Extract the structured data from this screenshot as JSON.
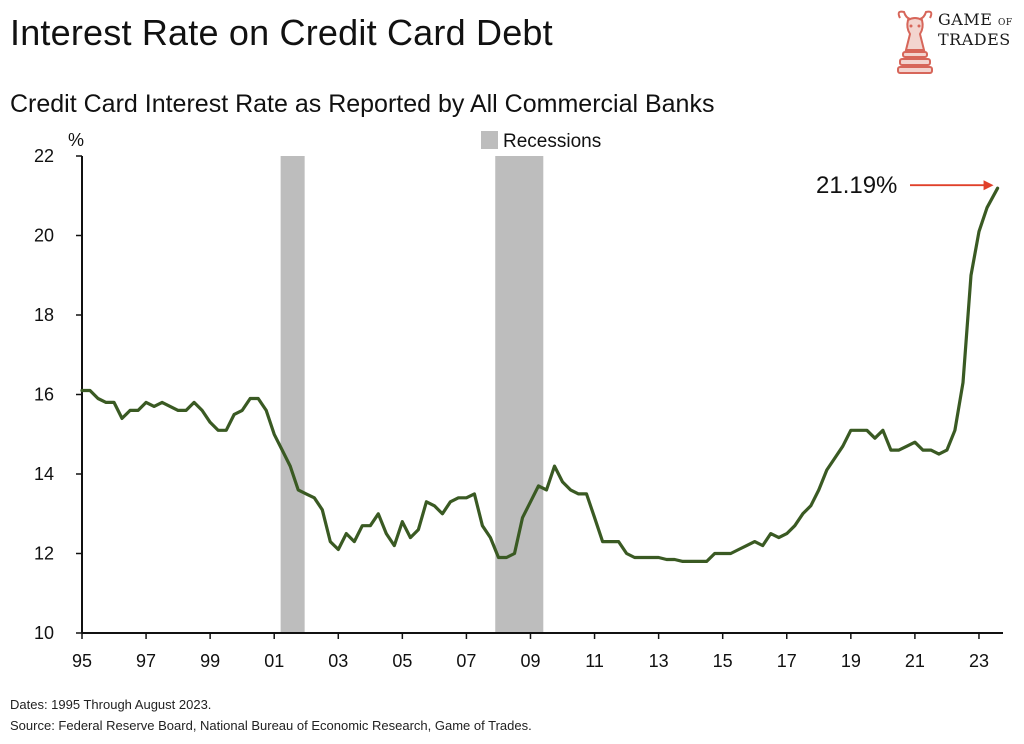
{
  "header": {
    "title": "Interest Rate on Credit Card Debt",
    "logo_text": "Game of Trades",
    "logo_line1": "GAME",
    "logo_line1_small": "OF",
    "logo_line2": "TRADES"
  },
  "footer": {
    "dates_note": "Dates: 1995 Through August 2023.",
    "source_note": "Source: Federal Reserve Board, National Bureau of Economic Research, Game of Trades."
  },
  "colors": {
    "line": "#3a5a23",
    "recession": "#bdbdbd",
    "arrow": "#e0402a",
    "axis": "#111111"
  },
  "chart_data": {
    "type": "line",
    "title": "Interest Rate on Credit Card Debt",
    "subtitle": "Credit Card Interest Rate as Reported by All Commercial Banks",
    "ylabel": "%",
    "xlabel": "",
    "xlim": [
      1995,
      2023.75
    ],
    "ylim": [
      10,
      22
    ],
    "x_ticks": [
      1995,
      1997,
      1999,
      2001,
      2003,
      2005,
      2007,
      2009,
      2011,
      2013,
      2015,
      2017,
      2019,
      2021,
      2023
    ],
    "x_tick_labels": [
      "95",
      "97",
      "99",
      "01",
      "03",
      "05",
      "07",
      "09",
      "11",
      "13",
      "15",
      "17",
      "19",
      "21",
      "23"
    ],
    "y_ticks": [
      10,
      12,
      14,
      16,
      18,
      20,
      22
    ],
    "y_tick_labels": [
      "10",
      "12",
      "14",
      "16",
      "18",
      "20",
      "22"
    ],
    "legend": {
      "label": "Recessions",
      "position": "top-center"
    },
    "grid": false,
    "recessions": [
      {
        "start": 2001.2,
        "end": 2001.95
      },
      {
        "start": 2007.9,
        "end": 2009.4
      }
    ],
    "annotation": {
      "text": "21.19%",
      "x": 2023.58,
      "y": 21.19
    },
    "series": [
      {
        "name": "Credit Card Interest Rate",
        "x": [
          1995.0,
          1995.25,
          1995.5,
          1995.75,
          1996.0,
          1996.25,
          1996.5,
          1996.75,
          1997.0,
          1997.25,
          1997.5,
          1997.75,
          1998.0,
          1998.25,
          1998.5,
          1998.75,
          1999.0,
          1999.25,
          1999.5,
          1999.75,
          2000.0,
          2000.25,
          2000.5,
          2000.75,
          2001.0,
          2001.25,
          2001.5,
          2001.75,
          2002.0,
          2002.25,
          2002.5,
          2002.75,
          2003.0,
          2003.25,
          2003.5,
          2003.75,
          2004.0,
          2004.25,
          2004.5,
          2004.75,
          2005.0,
          2005.25,
          2005.5,
          2005.75,
          2006.0,
          2006.25,
          2006.5,
          2006.75,
          2007.0,
          2007.25,
          2007.5,
          2007.75,
          2008.0,
          2008.25,
          2008.5,
          2008.75,
          2009.0,
          2009.25,
          2009.5,
          2009.75,
          2010.0,
          2010.25,
          2010.5,
          2010.75,
          2011.0,
          2011.25,
          2011.5,
          2011.75,
          2012.0,
          2012.25,
          2012.5,
          2012.75,
          2013.0,
          2013.25,
          2013.5,
          2013.75,
          2014.0,
          2014.25,
          2014.5,
          2014.75,
          2015.0,
          2015.25,
          2015.5,
          2015.75,
          2016.0,
          2016.25,
          2016.5,
          2016.75,
          2017.0,
          2017.25,
          2017.5,
          2017.75,
          2018.0,
          2018.25,
          2018.5,
          2018.75,
          2019.0,
          2019.25,
          2019.5,
          2019.75,
          2020.0,
          2020.25,
          2020.5,
          2020.75,
          2021.0,
          2021.25,
          2021.5,
          2021.75,
          2022.0,
          2022.25,
          2022.5,
          2022.75,
          2023.0,
          2023.25,
          2023.58
        ],
        "y": [
          16.1,
          16.1,
          15.9,
          15.8,
          15.8,
          15.4,
          15.6,
          15.6,
          15.8,
          15.7,
          15.8,
          15.7,
          15.6,
          15.6,
          15.8,
          15.6,
          15.3,
          15.1,
          15.1,
          15.5,
          15.6,
          15.9,
          15.9,
          15.6,
          15.0,
          14.6,
          14.2,
          13.6,
          13.5,
          13.4,
          13.1,
          12.3,
          12.1,
          12.5,
          12.3,
          12.7,
          12.7,
          13.0,
          12.5,
          12.2,
          12.8,
          12.4,
          12.6,
          13.3,
          13.2,
          13.0,
          13.3,
          13.4,
          13.4,
          13.5,
          12.7,
          12.4,
          11.9,
          11.9,
          12.0,
          12.9,
          13.3,
          13.7,
          13.6,
          14.2,
          13.8,
          13.6,
          13.5,
          13.5,
          12.9,
          12.3,
          12.3,
          12.3,
          12.0,
          11.9,
          11.9,
          11.9,
          11.9,
          11.85,
          11.85,
          11.8,
          11.8,
          11.8,
          11.8,
          12.0,
          12.0,
          12.0,
          12.1,
          12.2,
          12.3,
          12.2,
          12.5,
          12.4,
          12.5,
          12.7,
          13.0,
          13.2,
          13.6,
          14.1,
          14.4,
          14.7,
          15.1,
          15.1,
          15.1,
          14.9,
          15.1,
          14.6,
          14.6,
          14.7,
          14.8,
          14.6,
          14.6,
          14.5,
          14.6,
          15.1,
          16.3,
          19.0,
          20.1,
          20.7,
          21.19
        ]
      }
    ]
  }
}
